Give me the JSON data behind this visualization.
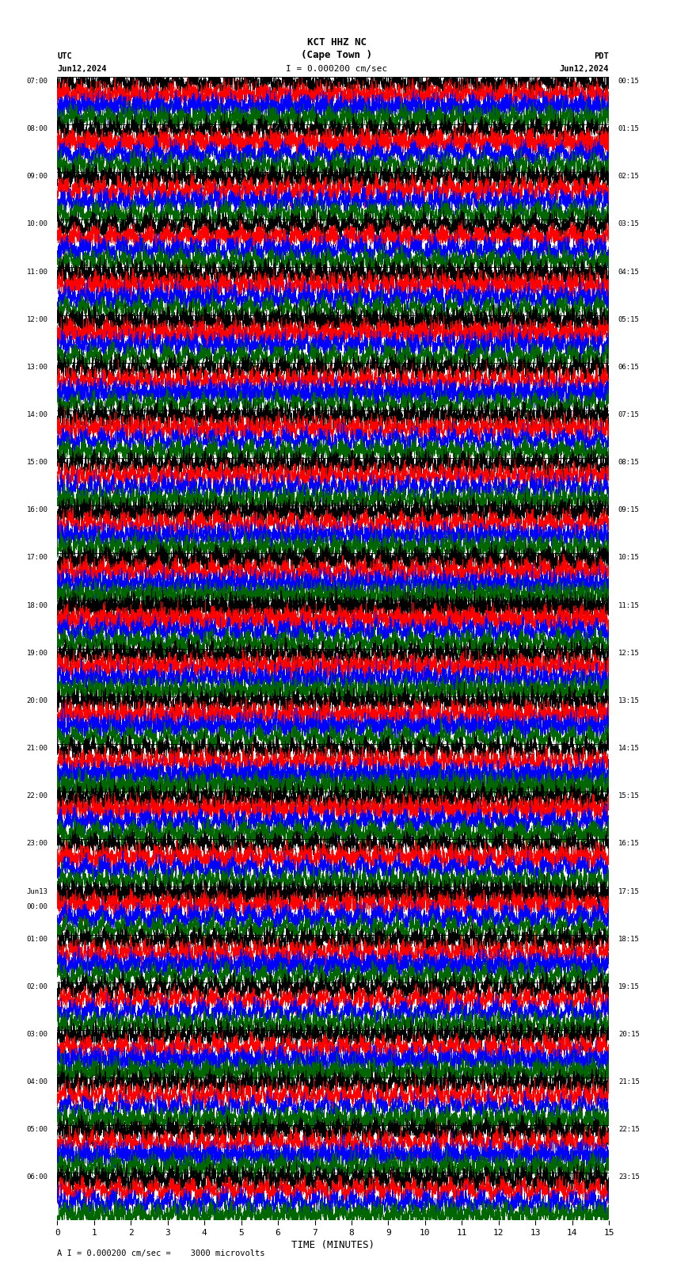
{
  "title_line1": "KCT HHZ NC",
  "title_line2": "(Cape Town )",
  "scale_text": "I = 0.000200 cm/sec",
  "left_label": "UTC",
  "left_date": "Jun12,2024",
  "right_label": "PDT",
  "right_date": "Jun12,2024",
  "xlabel": "TIME (MINUTES)",
  "footer": "A I = 0.000200 cm/sec =    3000 microvolts",
  "background_color": "#ffffff",
  "trace_colors": [
    "#000000",
    "#ff0000",
    "#0000ff",
    "#006600"
  ],
  "left_times": [
    "07:00",
    "08:00",
    "09:00",
    "10:00",
    "11:00",
    "12:00",
    "13:00",
    "14:00",
    "15:00",
    "16:00",
    "17:00",
    "18:00",
    "19:00",
    "20:00",
    "21:00",
    "22:00",
    "23:00",
    "Jun13|00:00",
    "01:00",
    "02:00",
    "03:00",
    "04:00",
    "05:00",
    "06:00"
  ],
  "right_times": [
    "00:15",
    "01:15",
    "02:15",
    "03:15",
    "04:15",
    "05:15",
    "06:15",
    "07:15",
    "08:15",
    "09:15",
    "10:15",
    "11:15",
    "12:15",
    "13:15",
    "14:15",
    "15:15",
    "16:15",
    "17:15",
    "18:15",
    "19:15",
    "20:15",
    "21:15",
    "22:15",
    "23:15"
  ],
  "n_rows": 24,
  "n_cols": 4,
  "xmin": 0,
  "xmax": 15,
  "xticks": [
    0,
    1,
    2,
    3,
    4,
    5,
    6,
    7,
    8,
    9,
    10,
    11,
    12,
    13,
    14,
    15
  ]
}
